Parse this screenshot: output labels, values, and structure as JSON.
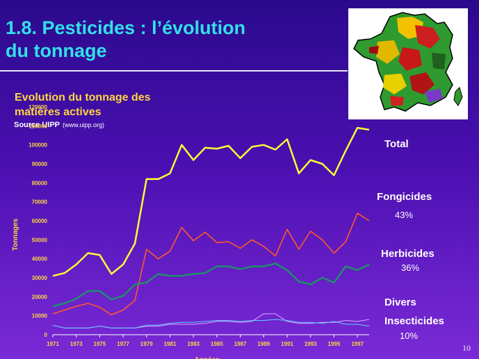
{
  "slide": {
    "title_line1": "1.8. Pesticides : l’évolution",
    "title_line2": "du tonnage",
    "page_number": "10"
  },
  "chart_heading": {
    "line1": "Evolution du tonnage des",
    "line2": "matières actives"
  },
  "source": {
    "label": "Source UIPP",
    "url": "(www.uipp.org)"
  },
  "labels": {
    "total": "Total",
    "fongicides": "Fongicides",
    "fongicides_pct": "43%",
    "herbicides": "Herbicides",
    "herbicides_pct": "36%",
    "divers": "Divers",
    "insecticides": "Insecticides",
    "insecticides_pct": "10%"
  },
  "colors": {
    "total": "#ffff33",
    "fongicides": "#ff5a2a",
    "herbicides": "#1f8f6a",
    "divers": "#e0a8ff",
    "insecticides": "#5fd0ff",
    "title": "#33e0e8",
    "axis_text": "#ffd640"
  },
  "map": {
    "icon": "france-pesticide-map-icon"
  },
  "chart_data": {
    "type": "line",
    "title": "Evolution du tonnage des matières actives",
    "xlabel": "Années",
    "ylabel": "Tonnages",
    "ylim": [
      0,
      120000
    ],
    "yticks": [
      0,
      10000,
      20000,
      30000,
      40000,
      50000,
      60000,
      70000,
      80000,
      90000,
      100000,
      110000,
      120000
    ],
    "xlim": [
      1971,
      1998
    ],
    "xticks": [
      1971,
      1973,
      1975,
      1977,
      1979,
      1981,
      1983,
      1985,
      1987,
      1989,
      1991,
      1993,
      1995,
      1997
    ],
    "x": [
      1971,
      1972,
      1973,
      1974,
      1975,
      1976,
      1977,
      1978,
      1979,
      1980,
      1981,
      1982,
      1983,
      1984,
      1985,
      1986,
      1987,
      1988,
      1989,
      1990,
      1991,
      1992,
      1993,
      1994,
      1995,
      1996,
      1997,
      1998
    ],
    "grid": false,
    "legend": "labels at right",
    "series": [
      {
        "name": "Total",
        "values": [
          31000,
          32500,
          37000,
          43000,
          42000,
          32000,
          37000,
          48000,
          82000,
          82000,
          85000,
          100000,
          92000,
          98500,
          98000,
          99500,
          93000,
          99000,
          100000,
          97500,
          103000,
          85000,
          92000,
          90000,
          84000,
          97000,
          109000,
          108000
        ]
      },
      {
        "name": "Fongicides",
        "values": [
          11000,
          13000,
          15000,
          16500,
          14500,
          10500,
          13000,
          18000,
          45000,
          40000,
          44000,
          56500,
          49500,
          54000,
          48500,
          49000,
          45500,
          50000,
          46500,
          41500,
          55500,
          45000,
          54500,
          50000,
          43000,
          49000,
          64000,
          60000
        ]
      },
      {
        "name": "Herbicides",
        "values": [
          15000,
          16500,
          19000,
          23000,
          23000,
          18500,
          20500,
          26500,
          27500,
          32000,
          31000,
          31000,
          32000,
          32500,
          36000,
          36000,
          34500,
          36000,
          36000,
          37500,
          34000,
          28000,
          26500,
          30000,
          27500,
          36000,
          34000,
          37000
        ]
      },
      {
        "name": "Divers",
        "values": [
          5000,
          3500,
          3500,
          3500,
          4500,
          3500,
          3500,
          3500,
          4500,
          4500,
          5500,
          5500,
          5500,
          6000,
          7000,
          7000,
          6500,
          7000,
          11000,
          11000,
          7000,
          6000,
          6000,
          6500,
          6500,
          7500,
          7000,
          8000
        ]
      },
      {
        "name": "Insecticides",
        "values": [
          5000,
          3500,
          3500,
          3500,
          4500,
          3500,
          3500,
          3500,
          5000,
          5000,
          6000,
          6500,
          6500,
          7000,
          7500,
          7500,
          7000,
          7500,
          7500,
          8000,
          7500,
          6500,
          6500,
          6000,
          7000,
          5500,
          5500,
          4500
        ]
      }
    ]
  }
}
